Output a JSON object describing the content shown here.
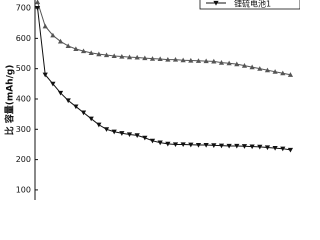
{
  "chart_data": {
    "type": "line",
    "y_label": "比 容量(mAh/g)",
    "x": [
      1,
      4,
      7,
      10,
      13,
      16,
      19,
      22,
      25,
      28,
      31,
      34,
      37,
      40,
      43,
      46,
      49,
      52,
      55,
      58,
      61,
      64,
      67,
      70,
      73,
      76,
      79,
      82,
      85,
      88,
      91,
      94,
      97,
      100
    ],
    "xlim": [
      0,
      101
    ],
    "ylim": [
      70,
      720
    ],
    "yticks": [
      100,
      200,
      300,
      400,
      500,
      600,
      700
    ],
    "legend": "top",
    "series": [
      {
        "color": "#555555",
        "marker": "triangle-up",
        "values": [
          720,
          640,
          610,
          590,
          575,
          565,
          558,
          552,
          548,
          545,
          542,
          540,
          538,
          537,
          535,
          533,
          532,
          530,
          530,
          528,
          527,
          526,
          525,
          524,
          520,
          518,
          515,
          510,
          505,
          500,
          495,
          490,
          485,
          480
        ]
      },
      {
        "name": "锂硫电池1",
        "color": "#111111",
        "marker": "triangle-down",
        "values": [
          700,
          480,
          450,
          420,
          395,
          375,
          355,
          335,
          315,
          300,
          292,
          287,
          283,
          280,
          272,
          262,
          256,
          252,
          250,
          250,
          249,
          248,
          248,
          247,
          246,
          245,
          245,
          244,
          243,
          242,
          240,
          238,
          236,
          232
        ]
      }
    ]
  }
}
